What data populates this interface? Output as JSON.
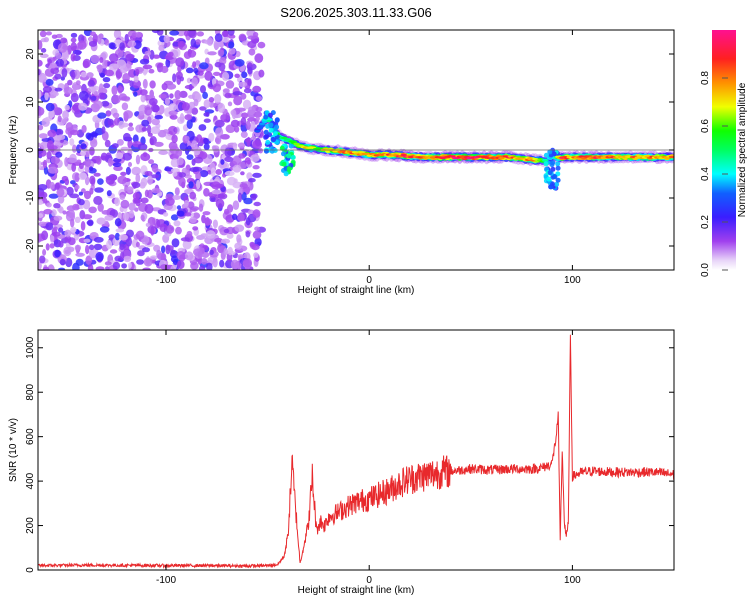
{
  "chart_data": [
    {
      "type": "heatmap",
      "title": "S206.2025.303.11.33.G06",
      "xlabel": "Height of straight line (km)",
      "ylabel": "Frequency (Hz)",
      "xlim": [
        -163,
        150
      ],
      "ylim": [
        -25,
        25
      ],
      "x_ticks": [
        -100,
        0,
        100
      ],
      "x_tick_labels": [
        "-100",
        "0",
        "100"
      ],
      "y_ticks": [
        -20,
        -10,
        0,
        10,
        20
      ],
      "y_tick_labels": [
        "-20",
        "-10",
        "0",
        "10",
        "20"
      ],
      "noise_region_x": [
        -163,
        -53
      ],
      "ridge": {
        "x": [
          -55,
          -50,
          -45,
          -40,
          -35,
          -30,
          -25,
          -20,
          -10,
          0,
          10,
          20,
          30,
          40,
          50,
          60,
          70,
          75,
          80,
          85,
          88,
          90,
          92,
          95,
          100,
          110,
          120,
          130,
          140,
          150
        ],
        "freq": [
          4,
          7,
          3,
          2,
          1,
          0.5,
          0.2,
          0,
          -0.5,
          -1,
          -1,
          -1.3,
          -1.5,
          -1.5,
          -1.5,
          -1.5,
          -1.5,
          -1.8,
          -2,
          -2.2,
          -2.5,
          -1,
          -1.5,
          -1.5,
          -1.5,
          -1.5,
          -1.5,
          -1.5,
          -1.5,
          -1.5
        ],
        "amplitude": [
          0.3,
          0.45,
          0.55,
          0.5,
          0.65,
          0.7,
          0.6,
          0.75,
          0.8,
          0.75,
          0.85,
          0.9,
          0.8,
          0.95,
          0.95,
          0.9,
          0.85,
          0.7,
          0.9,
          0.6,
          0.4,
          0.5,
          0.6,
          0.9,
          0.8,
          0.9,
          0.85,
          0.8,
          0.8,
          0.8
        ]
      },
      "colorbar": {
        "label": "Normalized spectral amplitude",
        "range": [
          0.0,
          1.0
        ],
        "ticks": [
          0.0,
          0.2,
          0.4,
          0.6,
          0.8
        ],
        "tick_labels": [
          "0.0",
          "0.2",
          "0.4",
          "0.6",
          "0.8"
        ]
      }
    },
    {
      "type": "line",
      "title": "",
      "xlabel": "Height of straight line (km)",
      "ylabel": "SNR (10 * v/v)",
      "xlim": [
        -163,
        150
      ],
      "ylim": [
        0,
        1080
      ],
      "x_ticks": [
        -100,
        0,
        100
      ],
      "x_tick_labels": [
        "-100",
        "0",
        "100"
      ],
      "y_ticks": [
        0,
        200,
        400,
        600,
        800,
        1000
      ],
      "y_tick_labels": [
        "0",
        "200",
        "400",
        "600",
        "800",
        "1000"
      ],
      "series": [
        {
          "name": "SNR",
          "color": "#e8292c",
          "x": [
            -163,
            -140,
            -120,
            -100,
            -80,
            -60,
            -50,
            -45,
            -42,
            -40,
            -38,
            -36,
            -34,
            -32,
            -30,
            -28,
            -26,
            -24,
            -22,
            -20,
            -15,
            -10,
            -5,
            0,
            5,
            10,
            15,
            20,
            25,
            30,
            35,
            40,
            45,
            50,
            60,
            70,
            80,
            85,
            88,
            90,
            92,
            93,
            94,
            95,
            96,
            97,
            98,
            99,
            100,
            102,
            105,
            110,
            120,
            130,
            140,
            150
          ],
          "y": [
            20,
            22,
            21,
            20,
            20,
            18,
            20,
            25,
            60,
            150,
            480,
            250,
            30,
            120,
            200,
            420,
            180,
            220,
            200,
            240,
            260,
            290,
            310,
            320,
            340,
            360,
            390,
            410,
            420,
            430,
            440,
            445,
            450,
            455,
            450,
            455,
            455,
            460,
            470,
            480,
            600,
            700,
            120,
            540,
            220,
            150,
            200,
            1060,
            420,
            430,
            440,
            445,
            440,
            440,
            440,
            430
          ]
        }
      ]
    }
  ]
}
